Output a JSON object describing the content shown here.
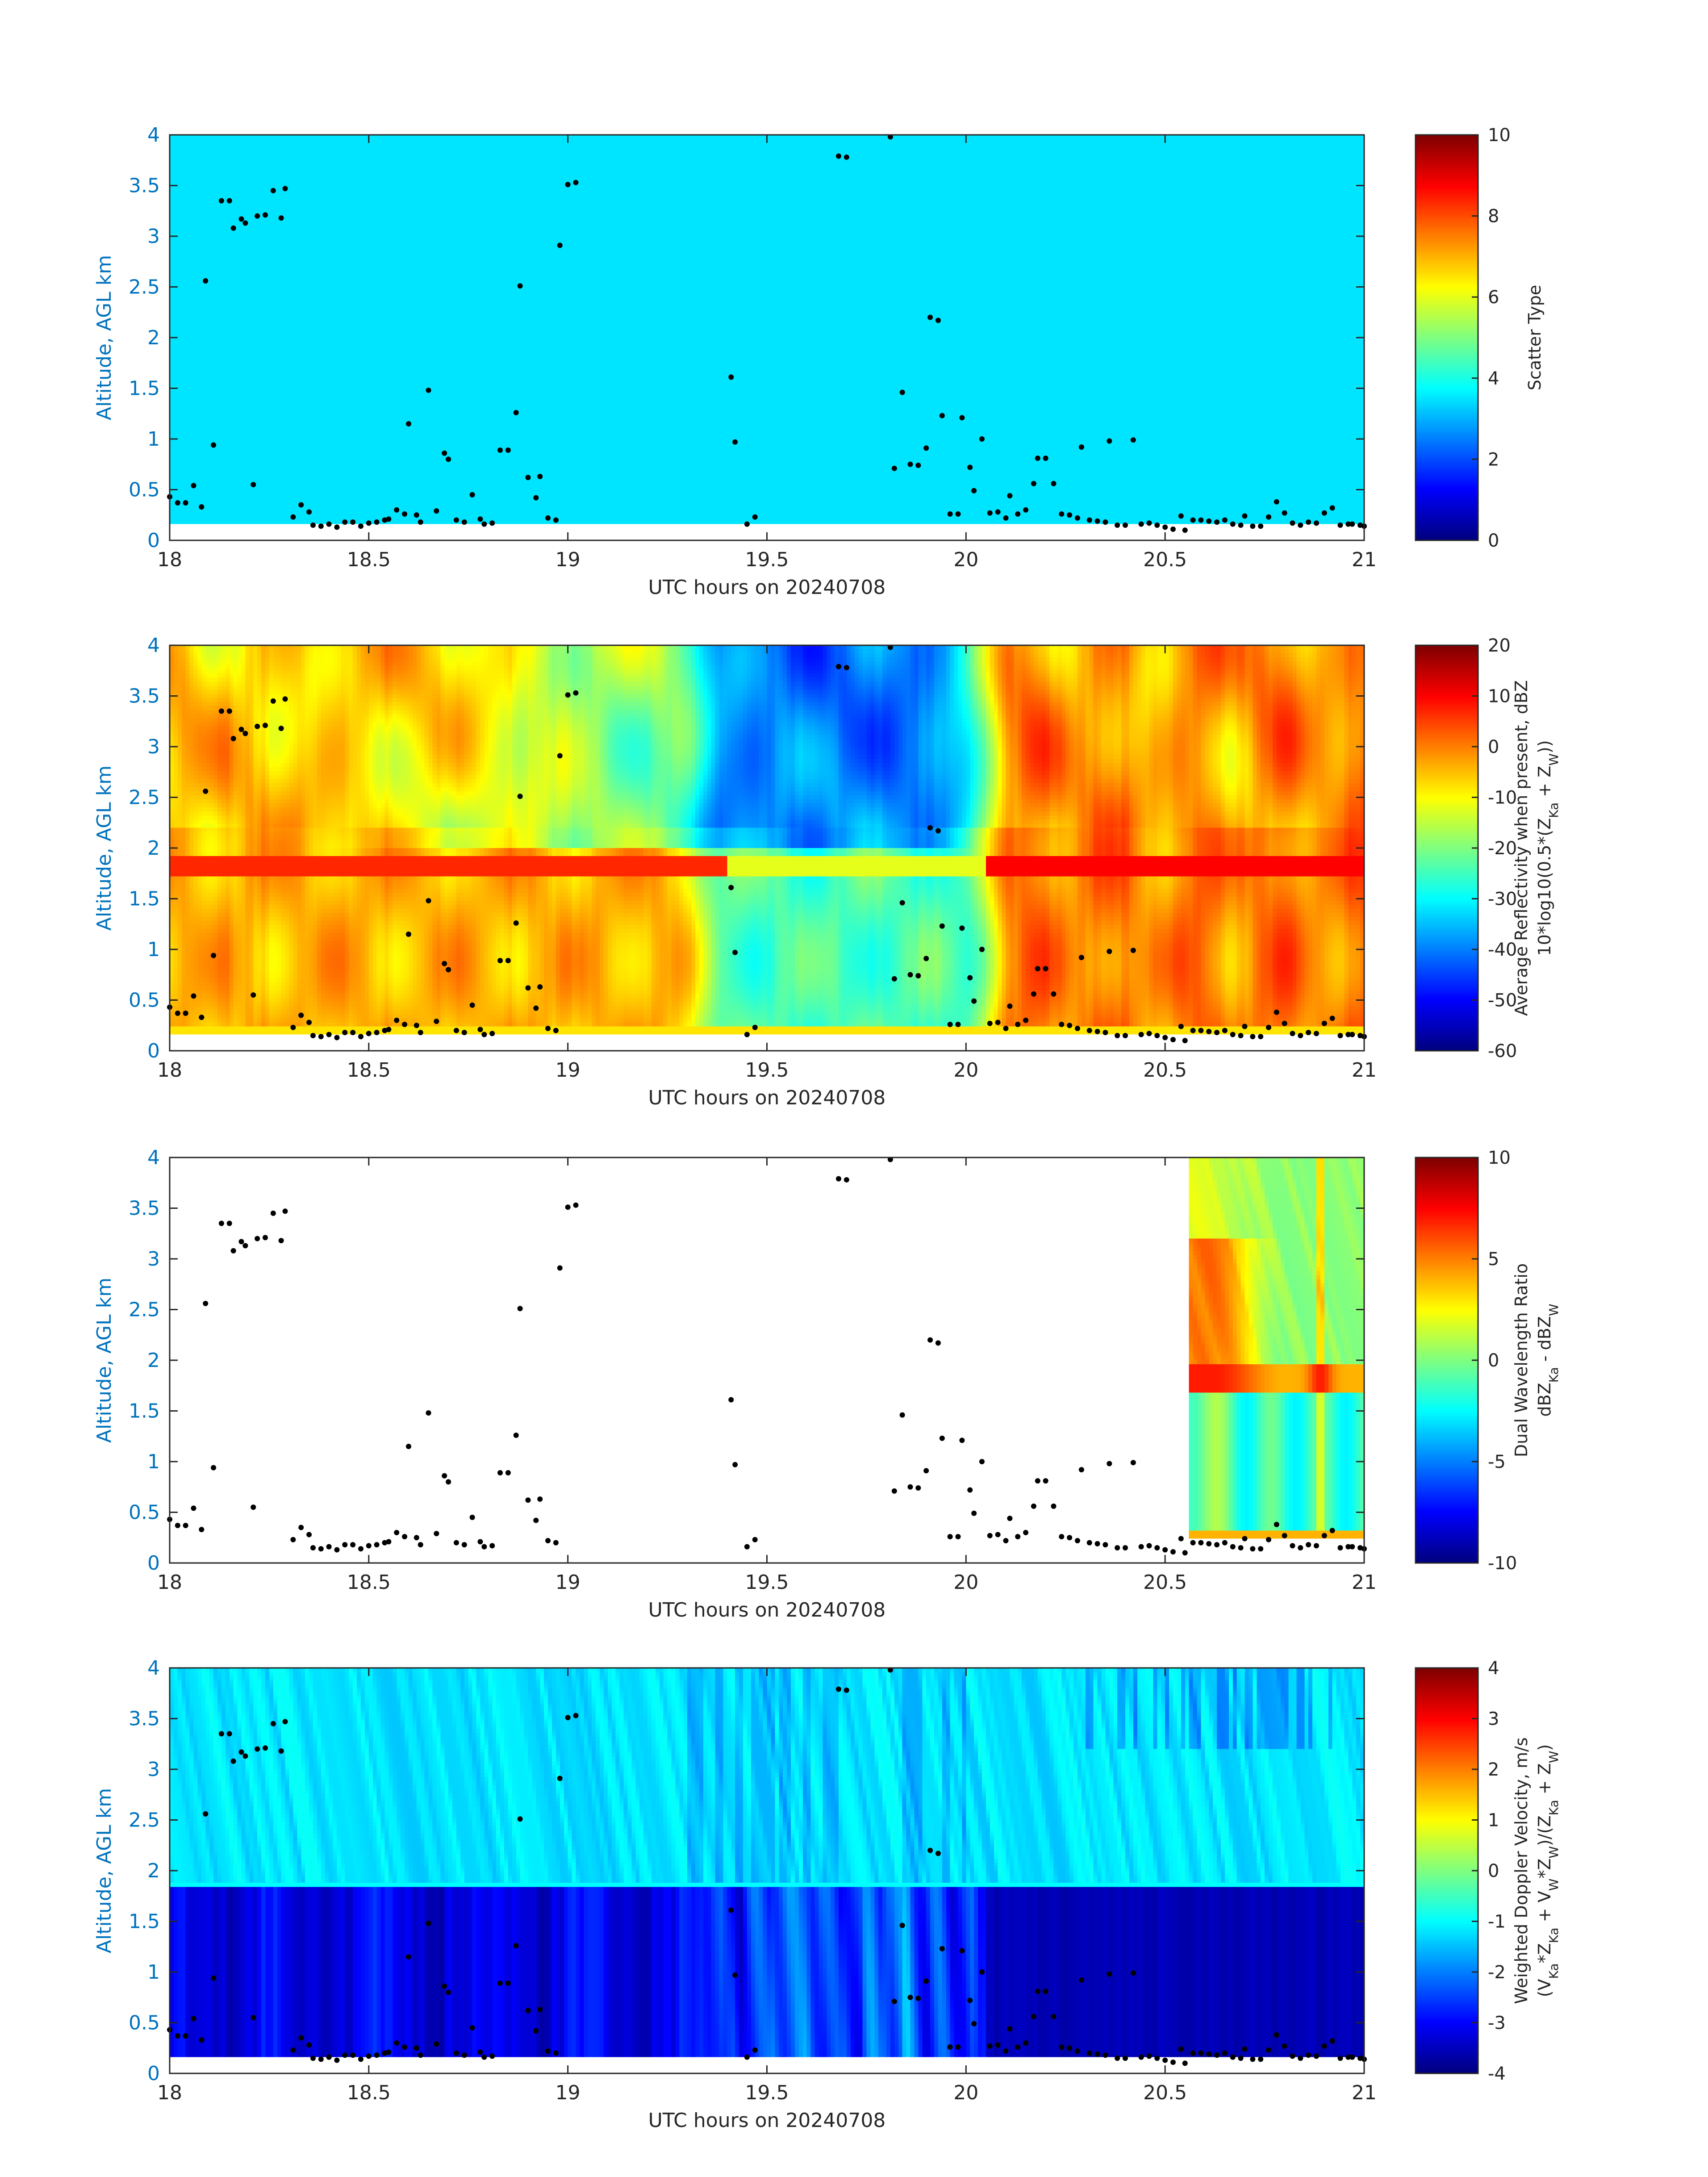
{
  "figure": {
    "background": "#ffffff"
  },
  "chart_data": [
    {
      "type": "heatmap",
      "id": "scatter",
      "xlabel": "UTC hours on 20240708",
      "ylabel": "Altitude, AGL km",
      "xlim": [
        18,
        21
      ],
      "ylim": [
        0,
        4
      ],
      "xticks": [
        "18",
        "18.5",
        "19",
        "19.5",
        "20",
        "20.5",
        "21"
      ],
      "yticks": [
        "0",
        "0.5",
        "1",
        "1.5",
        "2",
        "2.5",
        "3",
        "3.5",
        "4"
      ],
      "colorbar": {
        "label_lines": [
          "Scatter Type"
        ],
        "range": [
          0,
          10
        ],
        "ticks": [
          "0",
          "2",
          "4",
          "6",
          "8",
          "10"
        ]
      },
      "field_description": "uniform scatter type about 3.5 above 0.18 km"
    },
    {
      "type": "heatmap",
      "id": "reflectivity",
      "xlabel": "UTC hours on 20240708",
      "ylabel": "Altitude, AGL km",
      "xlim": [
        18,
        21
      ],
      "ylim": [
        0,
        4
      ],
      "xticks": [
        "18",
        "18.5",
        "19",
        "19.5",
        "20",
        "20.5",
        "21"
      ],
      "yticks": [
        "0",
        "0.5",
        "1",
        "1.5",
        "2",
        "2.5",
        "3",
        "3.5",
        "4"
      ],
      "colorbar": {
        "label_lines": [
          "Average Reflectivity when present, dBZ",
          "10*log10(0.5*(Z_Ka + Z_W))"
        ],
        "range": [
          -60,
          20
        ],
        "ticks": [
          "-60",
          "-50",
          "-40",
          "-30",
          "-20",
          "-10",
          "0",
          "10",
          "20"
        ]
      }
    },
    {
      "type": "heatmap",
      "id": "dwr",
      "xlabel": "UTC hours on 20240708",
      "ylabel": "Altitude, AGL km",
      "xlim": [
        18,
        21
      ],
      "ylim": [
        0,
        4
      ],
      "xticks": [
        "18",
        "18.5",
        "19",
        "19.5",
        "20",
        "20.5",
        "21"
      ],
      "yticks": [
        "0",
        "0.5",
        "1",
        "1.5",
        "2",
        "2.5",
        "3",
        "3.5",
        "4"
      ],
      "colorbar": {
        "label_lines": [
          "Dual Wavelength Ratio",
          "dBZ_Ka - dBZ_W"
        ],
        "range": [
          -10,
          10
        ],
        "ticks": [
          "-10",
          "-5",
          "0",
          "5",
          "10"
        ]
      },
      "data_time_range": [
        20.56,
        21
      ]
    },
    {
      "type": "heatmap",
      "id": "velocity",
      "xlabel": "UTC hours on 20240708",
      "ylabel": "Altitude, AGL km",
      "xlim": [
        18,
        21
      ],
      "ylim": [
        0,
        4
      ],
      "xticks": [
        "18",
        "18.5",
        "19",
        "19.5",
        "20",
        "20.5",
        "21"
      ],
      "yticks": [
        "0",
        "0.5",
        "1",
        "1.5",
        "2",
        "2.5",
        "3",
        "3.5",
        "4"
      ],
      "colorbar": {
        "label_lines": [
          "Weighted Doppler Velocity, m/s",
          "(V_Ka*Z_Ka + V_W*Z_W)/(Z_Ka + Z_W)"
        ],
        "range": [
          -4,
          4
        ],
        "ticks": [
          "-4",
          "-3",
          "-2",
          "-1",
          "0",
          "1",
          "2",
          "3",
          "4"
        ]
      }
    },
    {
      "type": "scatter",
      "id": "cloud-base-points",
      "description": "black dots overlaid on every panel",
      "points": [
        [
          18.0,
          0.43
        ],
        [
          18.02,
          0.37
        ],
        [
          18.04,
          0.37
        ],
        [
          18.06,
          0.54
        ],
        [
          18.08,
          0.33
        ],
        [
          18.09,
          2.56
        ],
        [
          18.11,
          0.94
        ],
        [
          18.13,
          3.35
        ],
        [
          18.15,
          3.35
        ],
        [
          18.16,
          3.08
        ],
        [
          18.18,
          3.17
        ],
        [
          18.19,
          3.13
        ],
        [
          18.21,
          0.55
        ],
        [
          18.22,
          3.2
        ],
        [
          18.24,
          3.21
        ],
        [
          18.26,
          3.45
        ],
        [
          18.28,
          3.18
        ],
        [
          18.29,
          3.47
        ],
        [
          18.31,
          0.23
        ],
        [
          18.33,
          0.35
        ],
        [
          18.35,
          0.28
        ],
        [
          18.36,
          0.15
        ],
        [
          18.38,
          0.14
        ],
        [
          18.4,
          0.16
        ],
        [
          18.42,
          0.13
        ],
        [
          18.44,
          0.18
        ],
        [
          18.46,
          0.18
        ],
        [
          18.48,
          0.14
        ],
        [
          18.5,
          0.17
        ],
        [
          18.52,
          0.18
        ],
        [
          18.54,
          0.2
        ],
        [
          18.55,
          0.21
        ],
        [
          18.57,
          0.3
        ],
        [
          18.59,
          0.26
        ],
        [
          18.6,
          1.15
        ],
        [
          18.62,
          0.25
        ],
        [
          18.63,
          0.18
        ],
        [
          18.65,
          1.48
        ],
        [
          18.67,
          0.29
        ],
        [
          18.69,
          0.86
        ],
        [
          18.7,
          0.8
        ],
        [
          18.72,
          0.2
        ],
        [
          18.74,
          0.18
        ],
        [
          18.76,
          0.45
        ],
        [
          18.78,
          0.21
        ],
        [
          18.79,
          0.16
        ],
        [
          18.81,
          0.17
        ],
        [
          18.83,
          0.89
        ],
        [
          18.85,
          0.89
        ],
        [
          18.87,
          1.26
        ],
        [
          18.88,
          2.51
        ],
        [
          18.9,
          0.62
        ],
        [
          18.92,
          0.42
        ],
        [
          18.93,
          0.63
        ],
        [
          18.95,
          0.22
        ],
        [
          18.97,
          0.2
        ],
        [
          18.98,
          2.91
        ],
        [
          19.0,
          3.51
        ],
        [
          19.02,
          3.53
        ],
        [
          19.41,
          1.61
        ],
        [
          19.42,
          0.97
        ],
        [
          19.45,
          0.16
        ],
        [
          19.47,
          0.23
        ],
        [
          19.68,
          3.79
        ],
        [
          19.7,
          3.78
        ],
        [
          19.81,
          3.98
        ],
        [
          19.82,
          0.71
        ],
        [
          19.84,
          1.46
        ],
        [
          19.86,
          0.75
        ],
        [
          19.88,
          0.74
        ],
        [
          19.9,
          0.91
        ],
        [
          19.91,
          2.2
        ],
        [
          19.93,
          2.17
        ],
        [
          19.94,
          1.23
        ],
        [
          19.96,
          0.26
        ],
        [
          19.98,
          0.26
        ],
        [
          19.99,
          1.21
        ],
        [
          20.01,
          0.72
        ],
        [
          20.02,
          0.49
        ],
        [
          20.04,
          1.0
        ],
        [
          20.06,
          0.27
        ],
        [
          20.08,
          0.28
        ],
        [
          20.1,
          0.22
        ],
        [
          20.11,
          0.44
        ],
        [
          20.13,
          0.26
        ],
        [
          20.15,
          0.3
        ],
        [
          20.17,
          0.56
        ],
        [
          20.18,
          0.81
        ],
        [
          20.2,
          0.81
        ],
        [
          20.22,
          0.56
        ],
        [
          20.24,
          0.26
        ],
        [
          20.26,
          0.25
        ],
        [
          20.28,
          0.22
        ],
        [
          20.29,
          0.92
        ],
        [
          20.31,
          0.2
        ],
        [
          20.33,
          0.19
        ],
        [
          20.35,
          0.18
        ],
        [
          20.36,
          0.98
        ],
        [
          20.38,
          0.15
        ],
        [
          20.4,
          0.15
        ],
        [
          20.42,
          0.99
        ],
        [
          20.44,
          0.16
        ],
        [
          20.46,
          0.17
        ],
        [
          20.48,
          0.15
        ],
        [
          20.5,
          0.13
        ],
        [
          20.52,
          0.11
        ],
        [
          20.54,
          0.24
        ],
        [
          20.55,
          0.1
        ],
        [
          20.57,
          0.2
        ],
        [
          20.59,
          0.2
        ],
        [
          20.61,
          0.19
        ],
        [
          20.63,
          0.18
        ],
        [
          20.65,
          0.2
        ],
        [
          20.67,
          0.16
        ],
        [
          20.69,
          0.15
        ],
        [
          20.7,
          0.24
        ],
        [
          20.72,
          0.14
        ],
        [
          20.74,
          0.14
        ],
        [
          20.76,
          0.23
        ],
        [
          20.78,
          0.38
        ],
        [
          20.8,
          0.27
        ],
        [
          20.82,
          0.17
        ],
        [
          20.84,
          0.15
        ],
        [
          20.86,
          0.18
        ],
        [
          20.88,
          0.17
        ],
        [
          20.9,
          0.27
        ],
        [
          20.92,
          0.32
        ],
        [
          20.94,
          0.15
        ],
        [
          20.96,
          0.16
        ],
        [
          20.97,
          0.16
        ],
        [
          20.99,
          0.15
        ],
        [
          21.0,
          0.14
        ]
      ]
    }
  ]
}
